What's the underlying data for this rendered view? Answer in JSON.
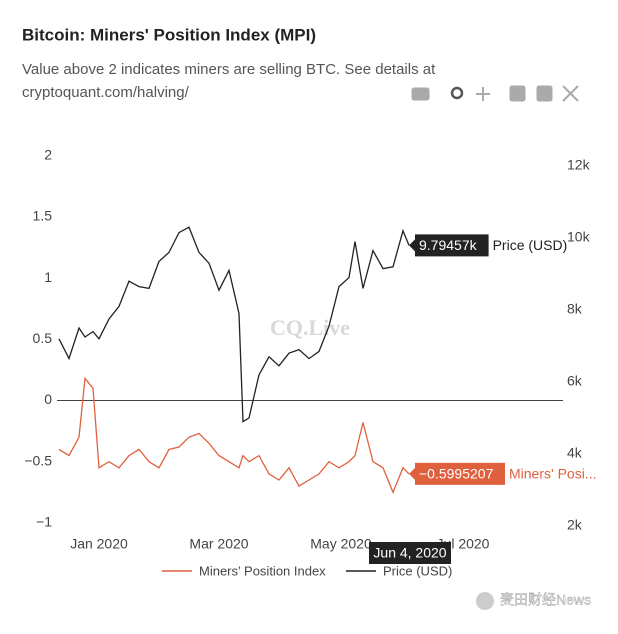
{
  "chart_data": {
    "type": "line",
    "title": "Bitcoin: Miners' Position Index (MPI)",
    "subtitle": [
      "Value above 2 indicates miners are selling BTC. See details at",
      "cryptoquant.com/halving/"
    ],
    "x": [
      "2019-12-12",
      "2019-12-17",
      "2019-12-22",
      "2019-12-25",
      "2019-12-29",
      "2020-01-01",
      "2020-01-06",
      "2020-01-11",
      "2020-01-16",
      "2020-01-21",
      "2020-01-26",
      "2020-01-31",
      "2020-02-05",
      "2020-02-10",
      "2020-02-15",
      "2020-02-20",
      "2020-02-25",
      "2020-03-01",
      "2020-03-06",
      "2020-03-11",
      "2020-03-13",
      "2020-03-16",
      "2020-03-21",
      "2020-03-26",
      "2020-03-31",
      "2020-04-05",
      "2020-04-10",
      "2020-04-15",
      "2020-04-20",
      "2020-04-25",
      "2020-04-30",
      "2020-05-05",
      "2020-05-08",
      "2020-05-12",
      "2020-05-17",
      "2020-05-22",
      "2020-05-27",
      "2020-06-01",
      "2020-06-04"
    ],
    "xlim": [
      "2019-12-11",
      "2020-08-20"
    ],
    "xticks": [
      {
        "value": "2020-01-01",
        "label": "Jan 2020"
      },
      {
        "value": "2020-03-01",
        "label": "Mar 2020"
      },
      {
        "value": "2020-05-01",
        "label": "May 2020"
      },
      {
        "value": "2020-07-01",
        "label": "Jul 2020"
      }
    ],
    "ylim": [
      -1.14,
      2.21
    ],
    "yticks": [
      {
        "value": -1,
        "label": "−1"
      },
      {
        "value": -0.5,
        "label": "−0.5"
      },
      0,
      0.5,
      1,
      1.5,
      2
    ],
    "y2lim": [
      1610,
      13000
    ],
    "y2ticks": [
      {
        "value": 2000,
        "label": "2k"
      },
      {
        "value": 4000,
        "label": "4k"
      },
      {
        "value": 6000,
        "label": "6k"
      },
      {
        "value": 8000,
        "label": "8k"
      },
      {
        "value": 10000,
        "label": "10k"
      },
      {
        "value": 12000,
        "label": "12k"
      }
    ],
    "grid": false,
    "legend": "bottom",
    "series": [
      {
        "name": "Miners’ Position Index",
        "color": "#e0603e",
        "hover_name": "Miners' Posi...",
        "values": [
          -0.4,
          -0.45,
          -0.3,
          0.18,
          0.1,
          -0.55,
          -0.5,
          -0.55,
          -0.45,
          -0.4,
          -0.5,
          -0.55,
          -0.4,
          -0.38,
          -0.3,
          -0.27,
          -0.35,
          -0.45,
          -0.5,
          -0.55,
          -0.45,
          -0.5,
          -0.45,
          -0.6,
          -0.65,
          -0.55,
          -0.7,
          -0.65,
          -0.6,
          -0.5,
          -0.55,
          -0.5,
          -0.45,
          -0.18,
          -0.5,
          -0.55,
          -0.75,
          -0.55,
          -0.5995207
        ],
        "value_labels": [
          null,
          null,
          null,
          null,
          null,
          null,
          null,
          null,
          null,
          null,
          null,
          null,
          null,
          null,
          null,
          null,
          null,
          null,
          null,
          null,
          null,
          null,
          null,
          null,
          null,
          null,
          null,
          null,
          null,
          null,
          null,
          null,
          null,
          null,
          null,
          null,
          null,
          null,
          "−0.5995207"
        ]
      },
      {
        "name": "Price (USD)",
        "color": "#222222",
        "axis": "y2",
        "values": [
          7200,
          6650,
          7500,
          7250,
          7400,
          7200,
          7750,
          8100,
          8800,
          8650,
          8600,
          9350,
          9600,
          10150,
          10300,
          9600,
          9300,
          8550,
          9100,
          7900,
          4900,
          5000,
          6200,
          6700,
          6450,
          6800,
          6900,
          6650,
          6850,
          7550,
          8650,
          8900,
          9900,
          8600,
          9650,
          9150,
          9200,
          10200,
          9794.57
        ],
        "value_labels": [
          null,
          null,
          null,
          null,
          null,
          null,
          null,
          null,
          null,
          null,
          null,
          null,
          null,
          null,
          null,
          null,
          null,
          null,
          null,
          null,
          null,
          null,
          null,
          null,
          null,
          null,
          null,
          null,
          null,
          null,
          null,
          null,
          null,
          null,
          null,
          null,
          null,
          null,
          "9.79457k"
        ]
      }
    ],
    "hover_x_label": "Jun 4, 2020",
    "watermark": "CQ.Live"
  },
  "footer": {
    "credit": "麦田财经News"
  }
}
